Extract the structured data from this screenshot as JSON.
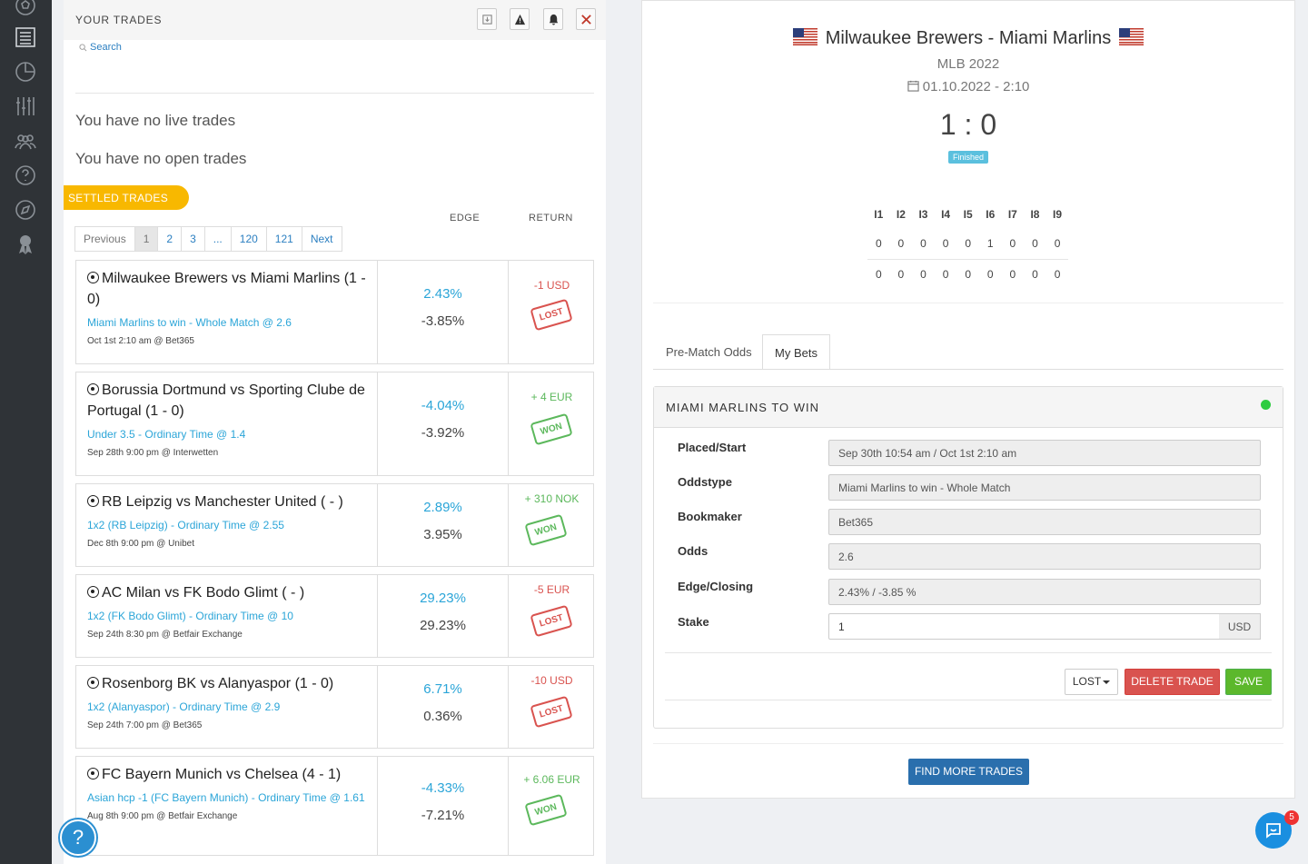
{
  "colors": {
    "sidebar": "#2f3337",
    "accent": "#2ba5d8",
    "settled": "#f8b800",
    "lost": "#d9534f",
    "won": "#5cb85c",
    "finished": "#5bc0de",
    "live": "#2ecc40"
  },
  "sidebar": {
    "icons": [
      "soccer-icon",
      "list-icon",
      "pie-chart-icon",
      "sliders-icon",
      "users-icon",
      "help-circle-icon",
      "compass-icon",
      "award-icon"
    ]
  },
  "trades_panel": {
    "title": "YOUR TRADES",
    "search_label": "Search",
    "no_live": "You have no live trades",
    "no_open": "You have no open trades",
    "settled_label": "SETTLED TRADES",
    "col_edge": "EDGE",
    "col_return": "RETURN",
    "pagination": [
      "Previous",
      "1",
      "2",
      "3",
      "...",
      "120",
      "121",
      "Next"
    ],
    "trades": [
      {
        "match": "Milwaukee Brewers vs Miami Marlins (1 - 0)",
        "sport": "baseball",
        "bet": "Miami Marlins to win - Whole Match @ 2.6",
        "meta": "Oct 1st 2:10 am @ Bet365",
        "edge": "2.43%",
        "closing": "-3.85%",
        "return": "-1 USD",
        "result": "LOST"
      },
      {
        "match": "Borussia Dortmund vs Sporting Clube de Portugal (1 - 0)",
        "sport": "soccer",
        "bet": "Under 3.5 - Ordinary Time @ 1.4",
        "meta": "Sep 28th 9:00 pm @ Interwetten",
        "edge": "-4.04%",
        "closing": "-3.92%",
        "return": "+ 4 EUR",
        "result": "WON"
      },
      {
        "match": "RB Leipzig vs Manchester United ( - )",
        "sport": "soccer",
        "bet": "1x2 (RB Leipzig) - Ordinary Time @ 2.55",
        "meta": "Dec 8th 9:00 pm @ Unibet",
        "edge": "2.89%",
        "closing": "3.95%",
        "return": "+ 310 NOK",
        "result": "WON"
      },
      {
        "match": "AC Milan vs FK Bodo Glimt ( - )",
        "sport": "soccer",
        "bet": "1x2 (FK Bodo Glimt) - Ordinary Time @ 10",
        "meta": "Sep 24th 8:30 pm @ Betfair Exchange",
        "edge": "29.23%",
        "closing": "29.23%",
        "return": "-5 EUR",
        "result": "LOST"
      },
      {
        "match": "Rosenborg BK vs Alanyaspor (1 - 0)",
        "sport": "soccer",
        "bet": "1x2 (Alanyaspor) - Ordinary Time @ 2.9",
        "meta": "Sep 24th 7:00 pm @ Bet365",
        "edge": "6.71%",
        "closing": "0.36%",
        "return": "-10 USD",
        "result": "LOST"
      },
      {
        "match": "FC Bayern Munich vs Chelsea (4 - 1)",
        "sport": "soccer",
        "bet": "Asian hcp -1 (FC Bayern Munich) - Ordinary Time @ 1.61",
        "meta": "Aug 8th 9:00 pm @ Betfair Exchange",
        "edge": "-4.33%",
        "closing": "-7.21%",
        "return": "+ 6.06 EUR",
        "result": "WON"
      }
    ],
    "help_label": "?"
  },
  "detail": {
    "title": "Milwaukee Brewers - Miami Marlins",
    "league": "MLB 2022",
    "date": "01.10.2022 - 2:10",
    "score": "1 : 0",
    "status": "Finished",
    "innings_header": [
      "I1",
      "I2",
      "I3",
      "I4",
      "I5",
      "I6",
      "I7",
      "I8",
      "I9"
    ],
    "innings_rows": [
      [
        "0",
        "0",
        "0",
        "0",
        "0",
        "1",
        "0",
        "0",
        "0"
      ],
      [
        "0",
        "0",
        "0",
        "0",
        "0",
        "0",
        "0",
        "0",
        "0"
      ]
    ],
    "tabs": [
      "Pre-Match Odds",
      "My Bets"
    ],
    "bet_title": "MIAMI MARLINS TO WIN",
    "fields": [
      {
        "label": "Placed/Start",
        "value": "Sep 30th 10:54 am / Oct 1st 2:10 am"
      },
      {
        "label": "Oddstype",
        "value": "Miami Marlins to win - Whole Match"
      },
      {
        "label": "Bookmaker",
        "value": "Bet365"
      },
      {
        "label": "Odds",
        "value": "2.6"
      },
      {
        "label": "Edge/Closing",
        "value": "2.43% / -3.85 %"
      }
    ],
    "stake_label": "Stake",
    "stake_value": "1",
    "stake_unit": "USD",
    "result_select": "LOST",
    "delete_label": "DELETE TRADE",
    "save_label": "SAVE",
    "find_more_label": "FIND MORE TRADES"
  },
  "chat_badge": "5"
}
